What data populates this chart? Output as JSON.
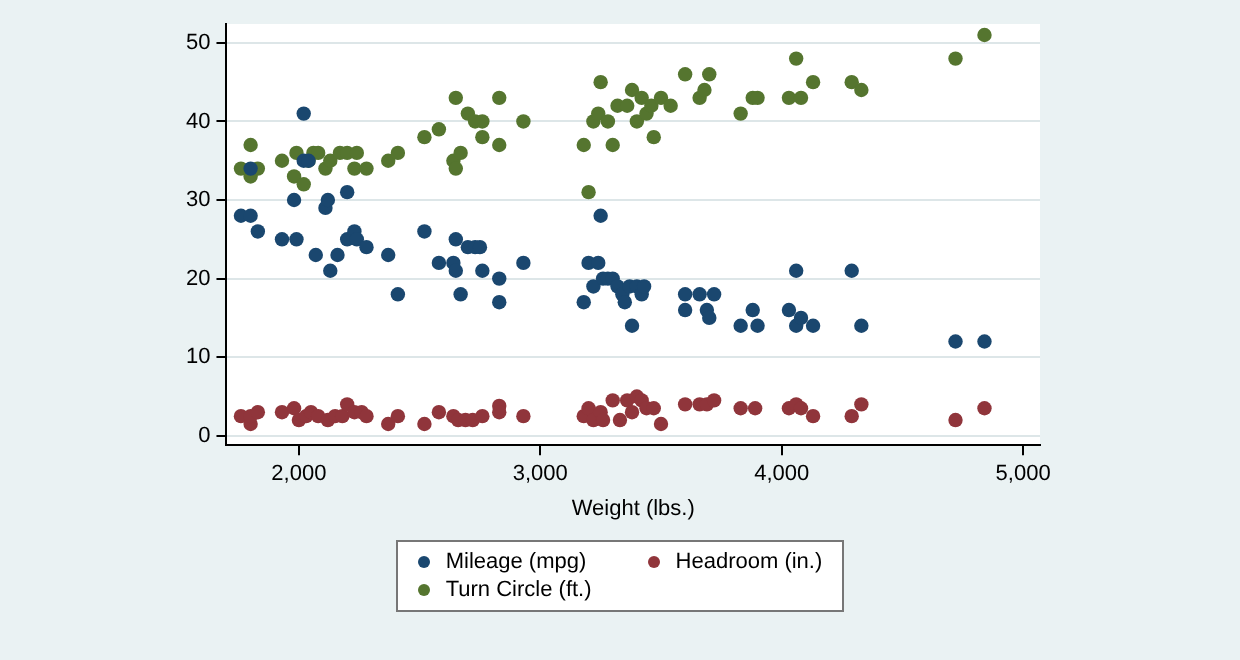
{
  "chart_data": {
    "type": "scatter",
    "xlabel": "Weight (lbs.)",
    "xlim": [
      1700,
      5070
    ],
    "xticks": [
      {
        "value": 2000,
        "label": "2,000"
      },
      {
        "value": 3000,
        "label": "3,000"
      },
      {
        "value": 4000,
        "label": "4,000"
      },
      {
        "value": 5000,
        "label": "5,000"
      }
    ],
    "ylim": [
      -1.2,
      52.4
    ],
    "yticks": [
      0,
      10,
      20,
      30,
      40,
      50
    ],
    "grid": "y",
    "legend": "bottom",
    "marker": "circle",
    "series": [
      {
        "name": "Mileage (mpg)",
        "color": "#1a476f",
        "x": [
          1760,
          1800,
          1800,
          1830,
          1930,
          1980,
          1990,
          2020,
          2020,
          2040,
          2070,
          2110,
          2120,
          2130,
          2160,
          2200,
          2200,
          2230,
          2240,
          2280,
          2370,
          2410,
          2520,
          2580,
          2640,
          2650,
          2650,
          2670,
          2700,
          2730,
          2750,
          2760,
          2830,
          2830,
          2930,
          3180,
          3200,
          3220,
          3240,
          3250,
          3260,
          3280,
          3300,
          3320,
          3340,
          3350,
          3370,
          3380,
          3400,
          3420,
          3430,
          3600,
          3600,
          3660,
          3690,
          3700,
          3720,
          3830,
          3880,
          3900,
          4030,
          4060,
          4060,
          4080,
          4130,
          4290,
          4330,
          4720,
          4840
        ],
        "values": [
          28,
          28,
          34,
          26,
          25,
          30,
          25,
          41,
          35,
          35,
          23,
          29,
          30,
          21,
          23,
          31,
          25,
          26,
          25,
          24,
          23,
          18,
          26,
          22,
          22,
          21,
          25,
          18,
          24,
          24,
          24,
          21,
          20,
          17,
          22,
          17,
          22,
          19,
          22,
          28,
          20,
          20,
          20,
          19,
          18,
          17,
          19,
          14,
          19,
          18,
          19,
          18,
          16,
          18,
          16,
          15,
          18,
          14,
          16,
          14,
          16,
          21,
          14,
          15,
          14,
          21,
          14,
          12,
          12
        ]
      },
      {
        "name": "Headroom (in.)",
        "color": "#90353b",
        "x": [
          1760,
          1800,
          1800,
          1830,
          1930,
          1980,
          2000,
          2030,
          2050,
          2080,
          2120,
          2150,
          2180,
          2200,
          2230,
          2260,
          2280,
          2370,
          2410,
          2520,
          2580,
          2640,
          2660,
          2690,
          2720,
          2760,
          2830,
          2830,
          2930,
          3180,
          3200,
          3220,
          3250,
          3260,
          3300,
          3330,
          3360,
          3380,
          3400,
          3420,
          3440,
          3470,
          3500,
          3600,
          3660,
          3690,
          3720,
          3830,
          3890,
          3900,
          4030,
          4060,
          4080,
          4130,
          4290,
          4330,
          4720,
          4840
        ],
        "values": [
          2.5,
          1.5,
          2.5,
          3,
          3,
          3.5,
          2,
          2.5,
          3,
          2.5,
          2,
          2.5,
          2.5,
          4,
          3,
          3,
          2.5,
          1.5,
          2.5,
          1.5,
          3,
          2.5,
          2,
          2,
          2,
          2.5,
          3.8,
          3,
          2.5,
          2.5,
          3.5,
          2,
          3,
          2,
          4.5,
          2,
          4.5,
          3,
          5,
          4.5,
          3.5,
          3.5,
          1.5,
          4,
          4,
          4,
          4.5,
          3.5,
          3.5,
          null,
          3.5,
          4,
          3.5,
          2.5,
          2.5,
          4,
          2,
          3.5
        ]
      },
      {
        "name": "Turn Circle (ft.)",
        "color": "#55752f",
        "x": [
          1760,
          1800,
          1800,
          1830,
          1930,
          1980,
          1990,
          2020,
          2040,
          2060,
          2080,
          2110,
          2130,
          2170,
          2200,
          2230,
          2240,
          2280,
          2370,
          2410,
          2520,
          2580,
          2640,
          2650,
          2650,
          2670,
          2700,
          2730,
          2760,
          2760,
          2830,
          2830,
          2930,
          3180,
          3200,
          3220,
          3240,
          3250,
          3280,
          3300,
          3320,
          3360,
          3380,
          3400,
          3420,
          3440,
          3460,
          3470,
          3500,
          3540,
          3600,
          3660,
          3680,
          3700,
          3830,
          3880,
          3900,
          4030,
          4060,
          4080,
          4130,
          4290,
          4330,
          4720,
          4840
        ],
        "values": [
          34,
          37,
          33,
          34,
          35,
          33,
          36,
          32,
          35,
          36,
          36,
          34,
          35,
          36,
          36,
          34,
          36,
          34,
          35,
          36,
          38,
          39,
          35,
          34,
          43,
          36,
          41,
          40,
          40,
          38,
          43,
          37,
          40,
          37,
          31,
          40,
          41,
          45,
          40,
          37,
          42,
          42,
          44,
          40,
          43,
          41,
          42,
          38,
          43,
          42,
          46,
          43,
          44,
          46,
          41,
          43,
          43,
          43,
          48,
          43,
          45,
          45,
          44,
          48,
          51
        ]
      }
    ]
  }
}
